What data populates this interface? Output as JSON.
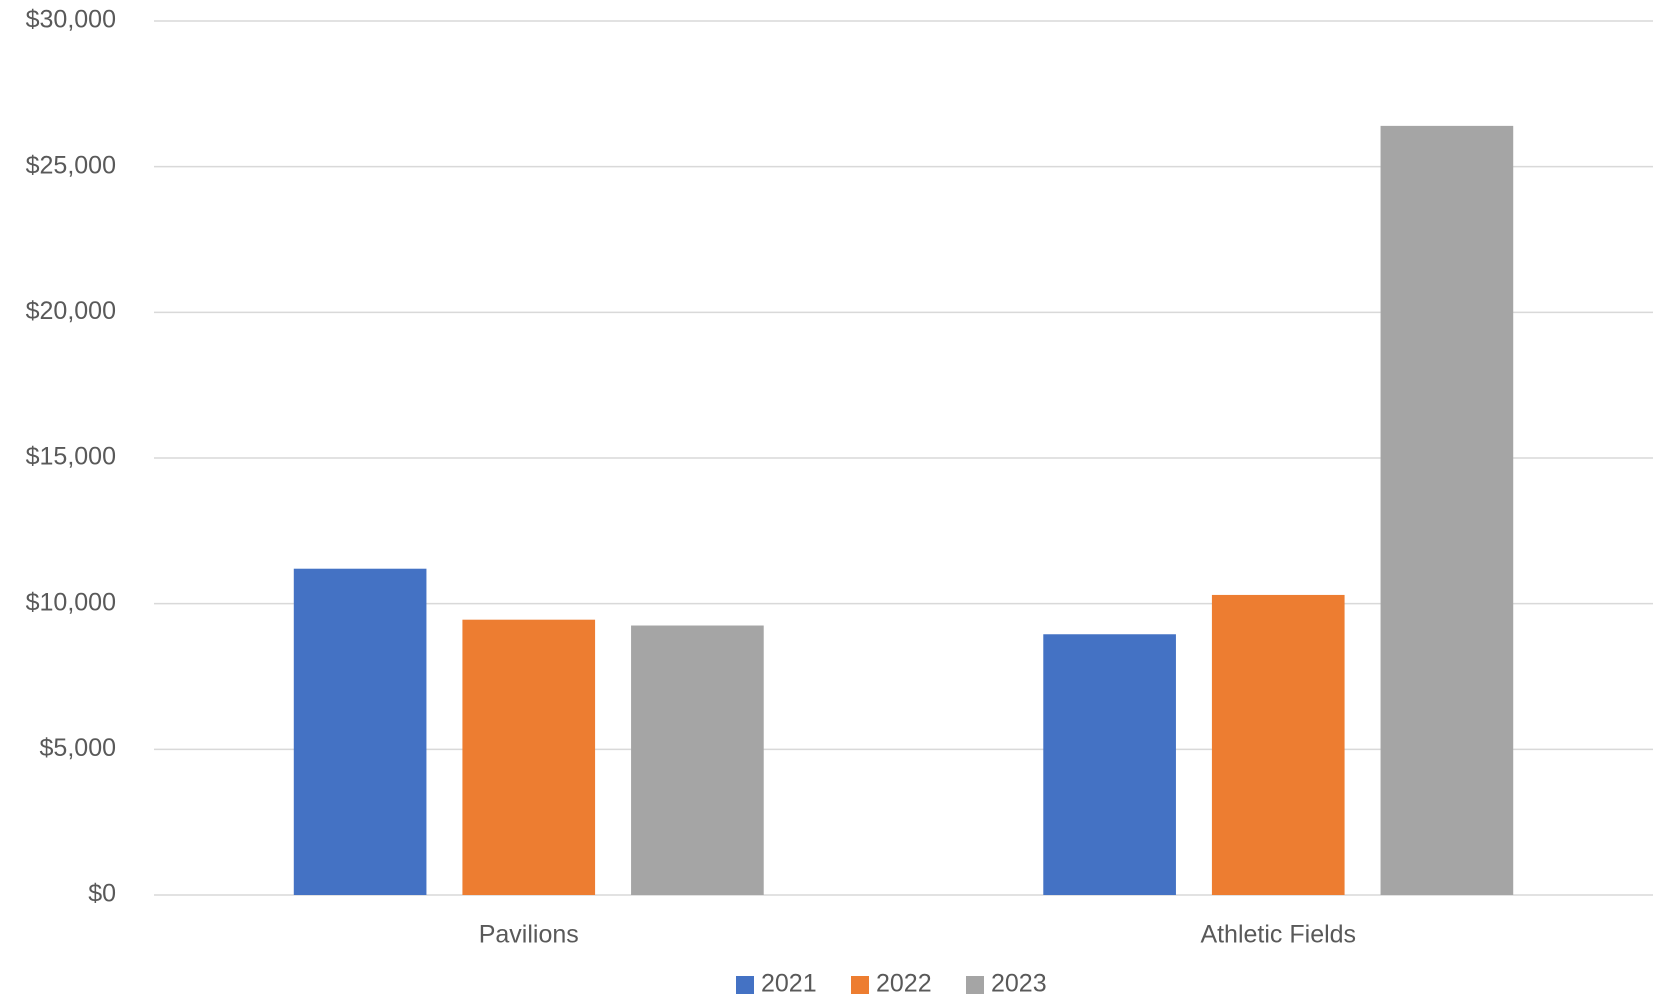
{
  "chart_data": {
    "type": "bar",
    "categories": [
      "Pavilions",
      "Athletic Fields"
    ],
    "series": [
      {
        "name": "2021",
        "color": "#4472c4",
        "values": [
          11200,
          8950
        ]
      },
      {
        "name": "2022",
        "color": "#ed7d31",
        "values": [
          9450,
          10300
        ]
      },
      {
        "name": "2023",
        "color": "#a5a5a5",
        "values": [
          9250,
          26400
        ]
      }
    ],
    "ylim": [
      0,
      30000
    ],
    "yticks": [
      {
        "value": 0,
        "label": "$0"
      },
      {
        "value": 5000,
        "label": "$5,000"
      },
      {
        "value": 10000,
        "label": "$10,000"
      },
      {
        "value": 15000,
        "label": "$15,000"
      },
      {
        "value": 20000,
        "label": "$20,000"
      },
      {
        "value": 25000,
        "label": "$25,000"
      },
      {
        "value": 30000,
        "label": "$30,000"
      }
    ],
    "grid": true,
    "legend": "bottom"
  }
}
